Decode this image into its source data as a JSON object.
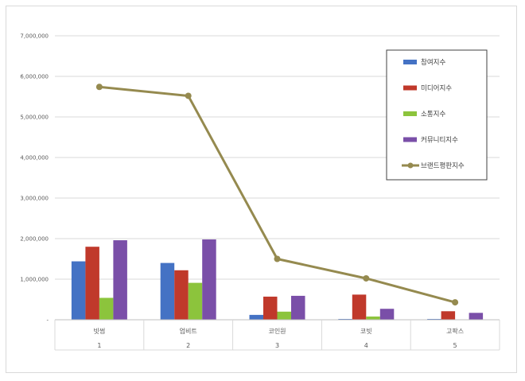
{
  "chart_data": {
    "type": "bar",
    "y_ticks": [
      "7,000,000",
      "6,000,000",
      "5,000,000",
      "4,000,000",
      "3,000,000",
      "2,000,000",
      "1,000,000",
      "-"
    ],
    "ylim": [
      0,
      7000000
    ],
    "categories": [
      {
        "name": "빗썸",
        "index": "1"
      },
      {
        "name": "업비트",
        "index": "2"
      },
      {
        "name": "코인원",
        "index": "3"
      },
      {
        "name": "코빗",
        "index": "4"
      },
      {
        "name": "고팍스",
        "index": "5"
      }
    ],
    "series": [
      {
        "name": "참여지수",
        "kind": "bar",
        "color": "#4472c4",
        "values": [
          1440000,
          1400000,
          120000,
          20000,
          20000
        ]
      },
      {
        "name": "미디어지수",
        "kind": "bar",
        "color": "#c0392b",
        "values": [
          1800000,
          1220000,
          570000,
          620000,
          210000
        ]
      },
      {
        "name": "소통지수",
        "kind": "bar",
        "color": "#8cc43c",
        "values": [
          540000,
          910000,
          200000,
          80000,
          10000
        ]
      },
      {
        "name": "커뮤니티지수",
        "kind": "bar",
        "color": "#7a4fa8",
        "values": [
          1960000,
          1980000,
          590000,
          270000,
          170000
        ]
      },
      {
        "name": "브랜드평판지수",
        "kind": "line",
        "color": "#958a4f",
        "values": [
          5740000,
          5520000,
          1500000,
          1020000,
          430000
        ]
      }
    ],
    "grid": true,
    "legend_position": "top-right"
  }
}
